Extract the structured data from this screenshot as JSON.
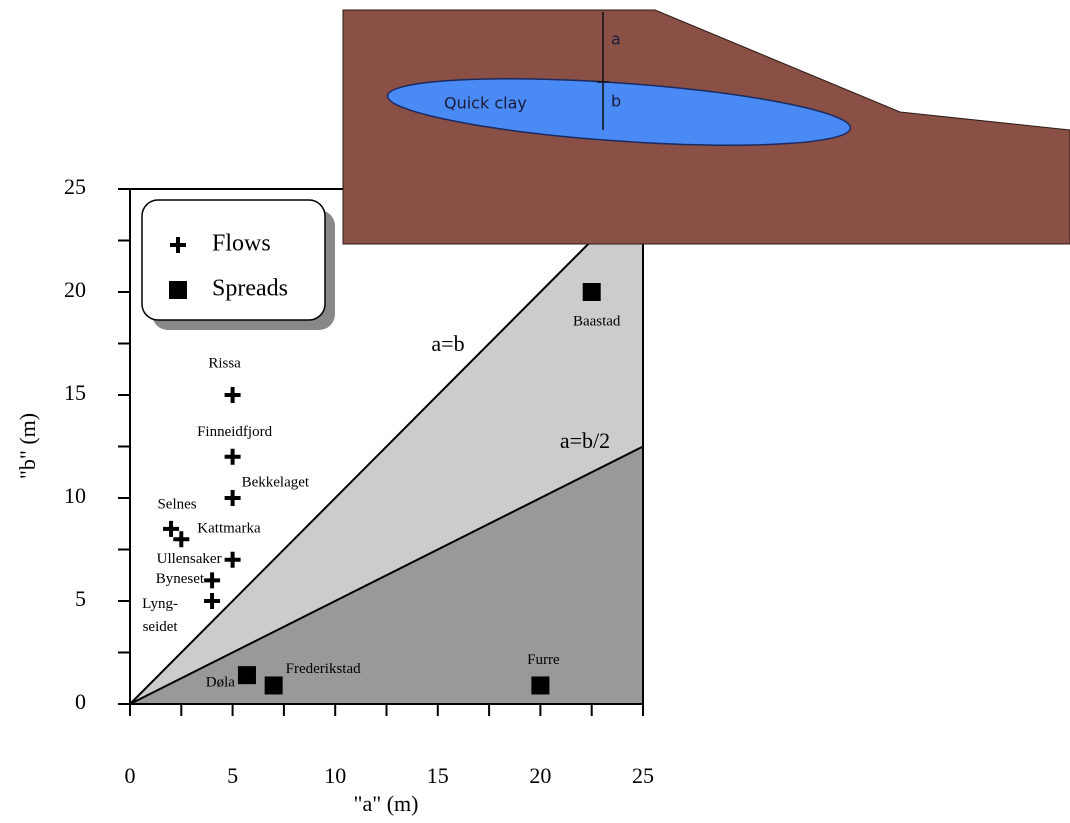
{
  "chart_data": {
    "type": "scatter",
    "xlabel": "\"a\" (m)",
    "ylabel": "\"b\" (m)",
    "xlim": [
      0,
      25
    ],
    "ylim": [
      0,
      25
    ],
    "xticks": [
      0,
      5,
      10,
      15,
      20,
      25
    ],
    "yticks": [
      0,
      5,
      10,
      15,
      20,
      25
    ],
    "xminorticks": [
      2.5,
      7.5,
      12.5,
      17.5,
      22.5
    ],
    "yminorticks": [
      2.5,
      7.5,
      12.5,
      17.5,
      22.5
    ],
    "legend": "upper left",
    "series": [
      {
        "name": "Flows",
        "marker": "plus",
        "color": "#000000",
        "labels": [
          "Rissa",
          "Finneidfjord",
          "Bekkelaget",
          "Selnes",
          "Kattmarka",
          "Ullensaker",
          "Byneset",
          "Lyng-\nseidet"
        ],
        "x": [
          5,
          5,
          5,
          2,
          2.5,
          5,
          4,
          4
        ],
        "y": [
          15,
          12,
          10,
          8.5,
          8,
          7,
          6,
          5
        ]
      },
      {
        "name": "Spreads",
        "marker": "square",
        "color": "#000000",
        "labels": [
          "Baastad",
          "Døla",
          "Frederikstad",
          "Furre"
        ],
        "x": [
          22.5,
          5.7,
          7,
          20
        ],
        "y": [
          20,
          1.4,
          0.9,
          0.9
        ]
      }
    ],
    "lines": [
      {
        "label": "a=b",
        "x": [
          0,
          25
        ],
        "y": [
          0,
          25
        ],
        "fill_below": "#cccccc"
      },
      {
        "label": "a=b/2",
        "x": [
          0,
          25
        ],
        "y": [
          0,
          12.5
        ],
        "fill_below": "#999999"
      }
    ],
    "inset": {
      "label": "Quick clay",
      "dim_a": "a",
      "dim_b": "b"
    }
  }
}
